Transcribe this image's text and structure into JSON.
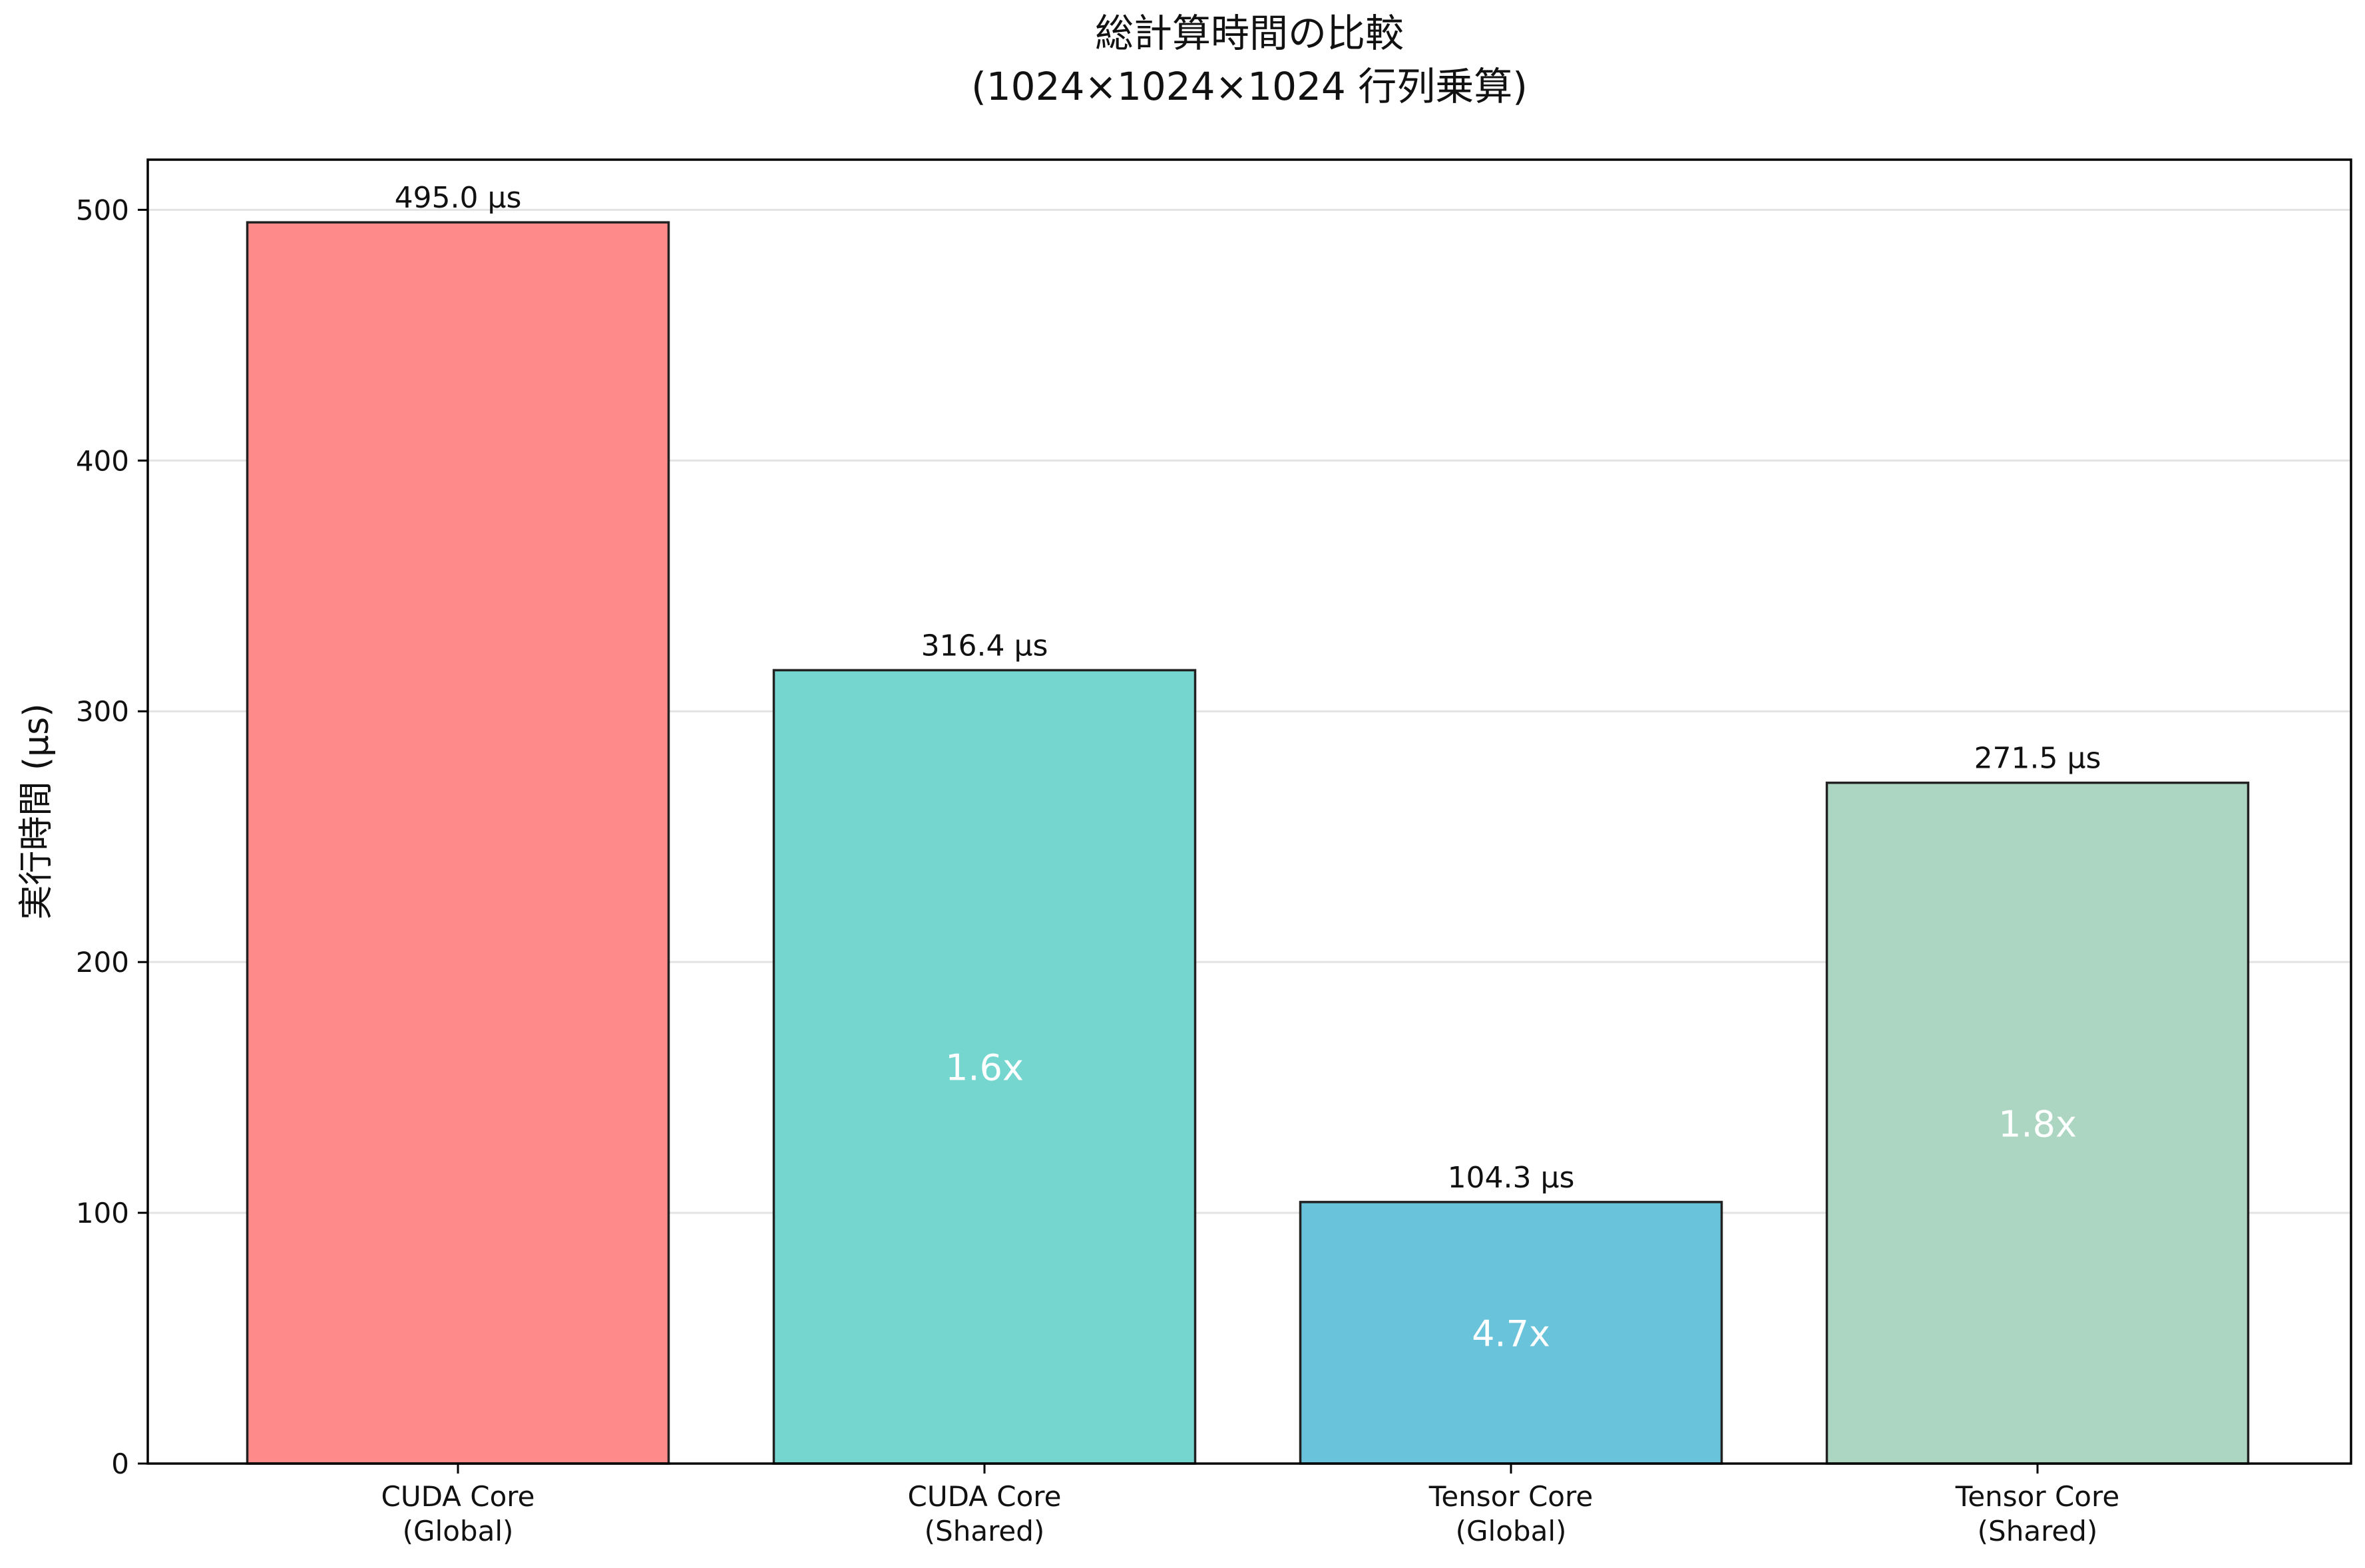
{
  "chart_data": {
    "type": "bar",
    "title": "総計算時間の比較\n(1024×1024×1024 行列乗算)",
    "title_lines": [
      "総計算時間の比較",
      "(1024×1024×1024 行列乗算)"
    ],
    "xlabel": "",
    "ylabel": "実行時間 (μs)",
    "categories": [
      [
        "CUDA Core",
        "(Global)"
      ],
      [
        "CUDA Core",
        "(Shared)"
      ],
      [
        "Tensor Core",
        "(Global)"
      ],
      [
        "Tensor Core",
        "(Shared)"
      ]
    ],
    "values": [
      495.0,
      316.4,
      104.3,
      271.5
    ],
    "value_labels": [
      "495.0 μs",
      "316.4 μs",
      "104.3 μs",
      "271.5 μs"
    ],
    "speedup_labels": [
      "",
      "1.6x",
      "4.7x",
      "1.8x"
    ],
    "colors": [
      "#ff8a8a",
      "#74d6cf",
      "#69c3da",
      "#acd6c2"
    ],
    "edge_color": "#222222",
    "ylim": [
      0,
      520
    ],
    "yticks": [
      0,
      100,
      200,
      300,
      400,
      500
    ],
    "grid": true,
    "grid_axis": "y",
    "legend": "none"
  }
}
